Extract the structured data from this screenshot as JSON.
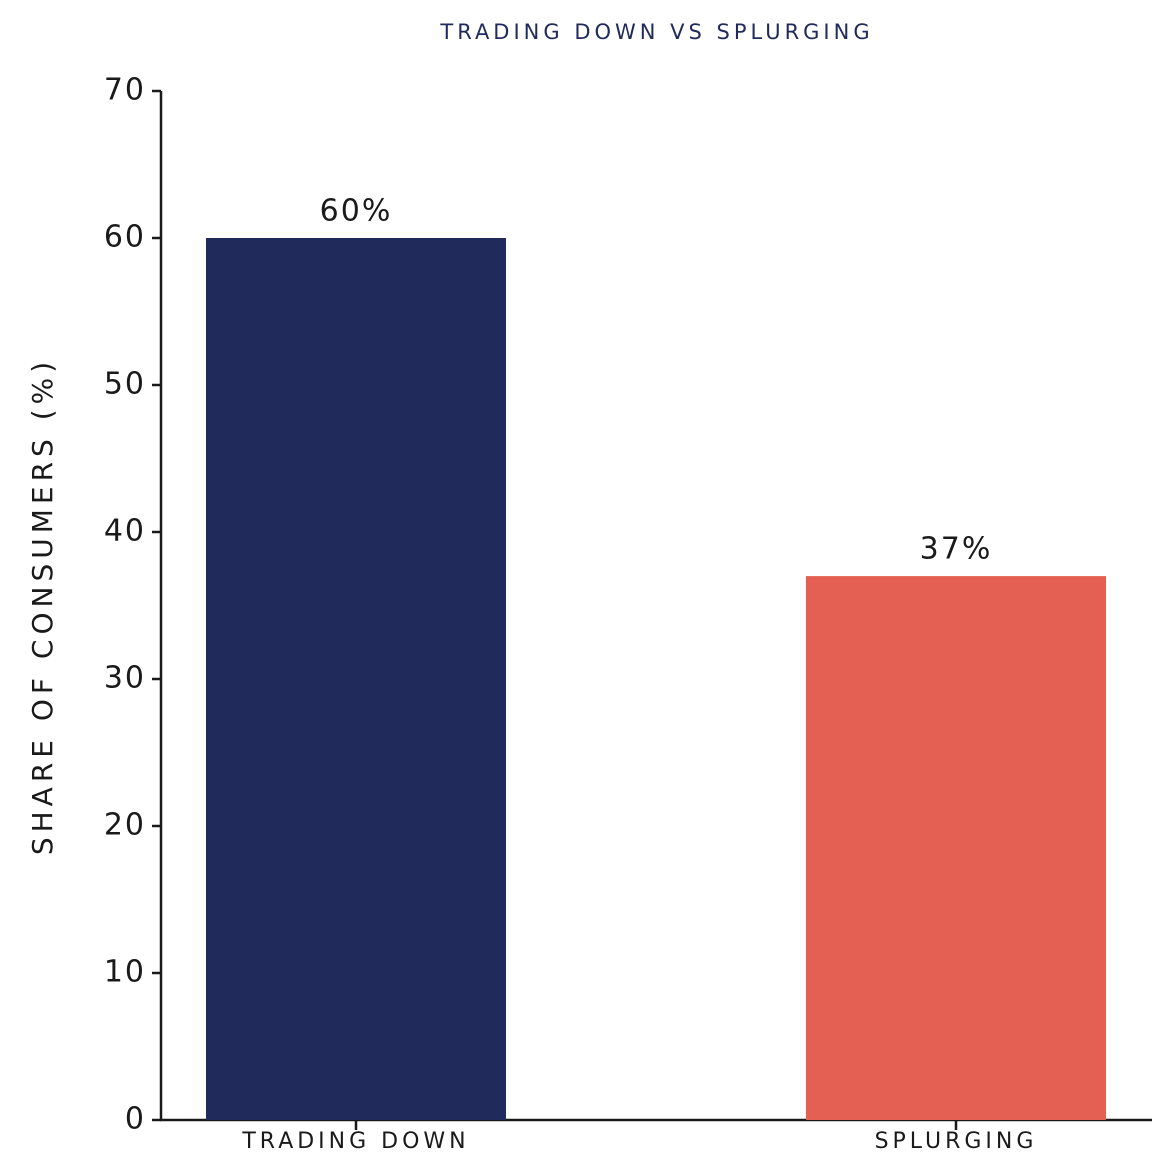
{
  "chart_data": {
    "type": "bar",
    "title": "TRADING DOWN VS SPLURGING",
    "y_label": "SHARE OF CONSUMERS (%)",
    "categories": [
      "TRADING DOWN",
      "SPLURGING"
    ],
    "values": [
      60,
      37
    ],
    "value_labels": [
      "60%",
      "37%"
    ],
    "colors": [
      "#212b5b",
      "#e36052"
    ],
    "ylim": [
      0,
      70
    ],
    "yticks": [
      0,
      10,
      20,
      30,
      40,
      50,
      60,
      70
    ],
    "grid": false
  }
}
